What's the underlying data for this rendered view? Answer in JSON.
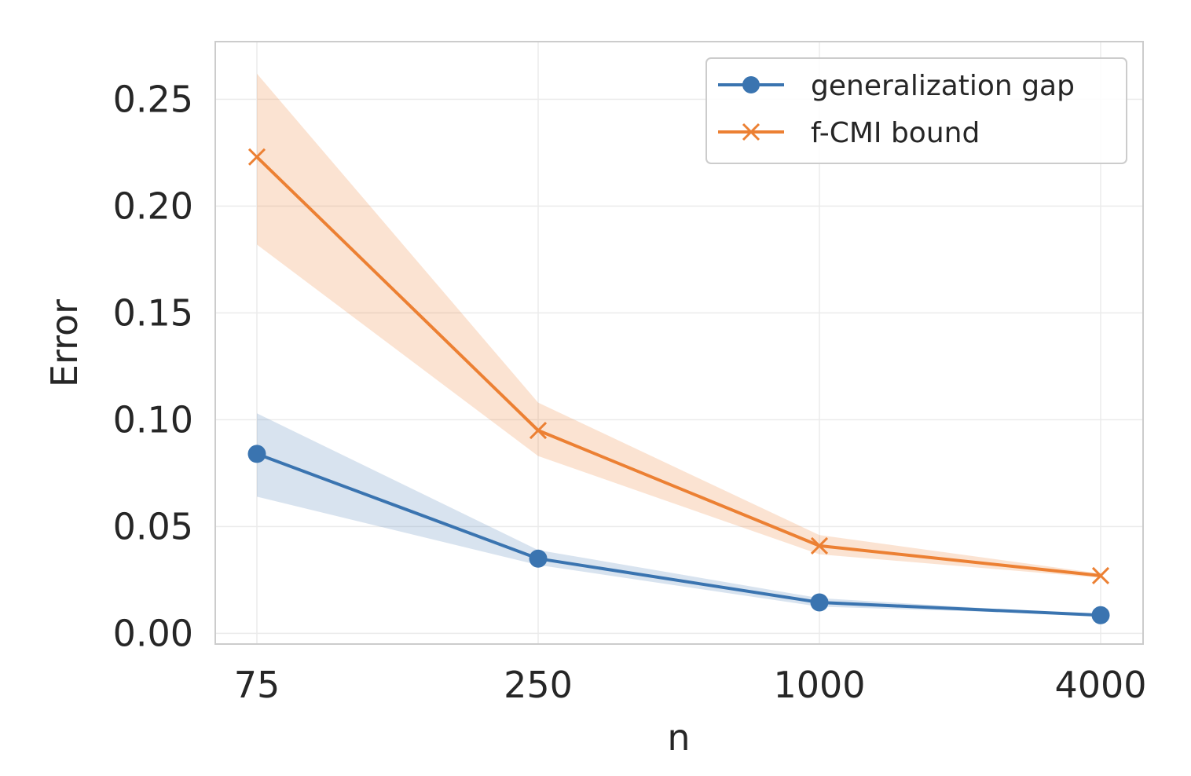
{
  "chart_data": {
    "type": "line",
    "title": "",
    "xlabel": "n",
    "ylabel": "Error",
    "categories": [
      "75",
      "250",
      "1000",
      "4000"
    ],
    "x_scale": "log",
    "ylim": [
      -0.005,
      0.277
    ],
    "yticks": [
      "0.00",
      "0.05",
      "0.10",
      "0.15",
      "0.20",
      "0.25"
    ],
    "ytick_values": [
      0.0,
      0.05,
      0.1,
      0.15,
      0.2,
      0.25
    ],
    "grid": true,
    "legend_position": "top-right",
    "series": [
      {
        "name": "generalization gap",
        "color": "#3a74b0",
        "marker": "circle",
        "values": [
          0.084,
          0.035,
          0.0145,
          0.0085
        ],
        "lower": [
          0.064,
          0.032,
          0.0125,
          0.0085
        ],
        "upper": [
          0.103,
          0.039,
          0.0165,
          0.0085
        ]
      },
      {
        "name": "f-CMI bound",
        "color": "#ec8033",
        "marker": "x",
        "values": [
          0.223,
          0.095,
          0.041,
          0.027
        ],
        "lower": [
          0.182,
          0.083,
          0.037,
          0.026
        ],
        "upper": [
          0.262,
          0.108,
          0.046,
          0.028
        ]
      }
    ]
  }
}
